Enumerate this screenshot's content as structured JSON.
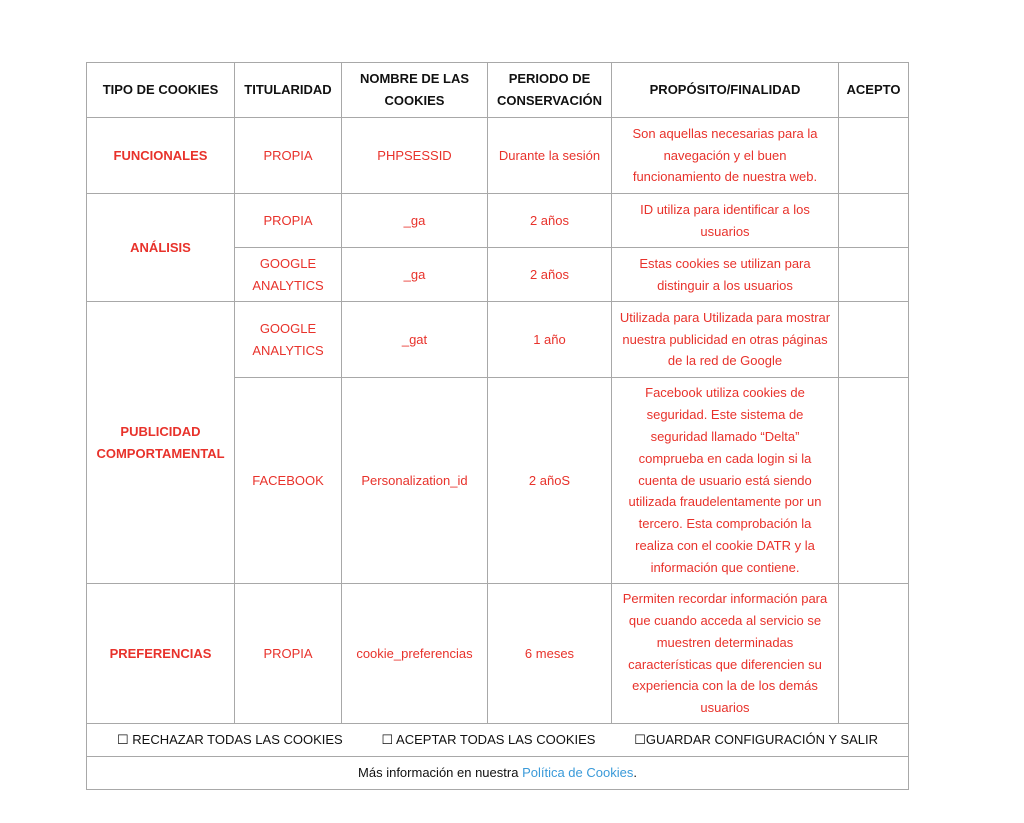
{
  "headers": [
    "TIPO DE COOKIES",
    "TITULARIDAD",
    "NOMBRE DE LAS COOKIES",
    "PERIODO DE CONSERVACIÓN",
    "PROPÓSITO/FINALIDAD",
    "ACEPTO"
  ],
  "rows": {
    "funcionales": {
      "type": "FUNCIONALES",
      "owner": "PROPIA",
      "name": "PHPSESSID",
      "period": "Durante la sesión",
      "purpose": "Son aquellas necesarias para la navegación y el buen funcionamiento de nuestra web."
    },
    "analisis": {
      "type": "ANÁLISIS",
      "items": [
        {
          "owner": "PROPIA",
          "name": "_ga",
          "period": "2 años",
          "purpose": "ID utiliza para identificar a los usuarios"
        },
        {
          "owner": "GOOGLE ANALYTICS",
          "name": "_ga",
          "period": "2 años",
          "purpose": "Estas cookies se utilizan para distinguir a los usuarios"
        }
      ]
    },
    "publicidad": {
      "type": "PUBLICIDAD COMPORTAMENTAL",
      "items": [
        {
          "owner": "GOOGLE ANALYTICS",
          "name": "_gat",
          "period": "1 año",
          "purpose": "Utilizada para Utilizada para mostrar nuestra publicidad en otras páginas de la red de Google"
        },
        {
          "owner": "FACEBOOK",
          "name": "Personalization_id",
          "period": "2 añoS",
          "purpose": "Facebook utiliza cookies de seguridad. Este sistema de seguridad llamado “Delta” comprueba en cada login si la cuenta de usuario está siendo utilizada fraudelentamente por un tercero. Esta comprobación la realiza con el cookie DATR y la información que contiene."
        }
      ]
    },
    "preferencias": {
      "type": "PREFERENCIAS",
      "owner": "PROPIA",
      "name": "cookie_preferencias",
      "period": "6 meses",
      "purpose": "Permiten recordar información para que cuando acceda al servicio se muestren determinadas características que diferencien su experiencia con la de los demás usuarios"
    }
  },
  "actions": {
    "reject": "☐ RECHAZAR TODAS LAS COOKIES",
    "accept": "☐ ACEPTAR TODAS LAS COOKIES",
    "save": "☐GUARDAR CONFIGURACIÓN Y SALIR"
  },
  "more_info": {
    "prefix": "Más información en nuestra ",
    "link": "Política de Cookies",
    "suffix": "."
  },
  "colors": {
    "accent": "#e8322b",
    "link": "#3a9ad9",
    "text": "#111111"
  }
}
